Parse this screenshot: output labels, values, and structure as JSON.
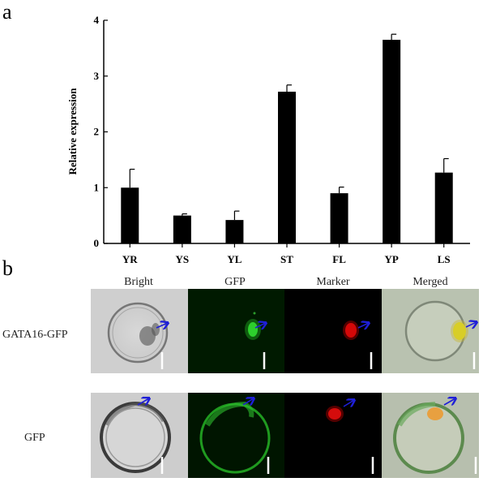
{
  "panel_a_label": "a",
  "panel_b_label": "b",
  "chart_data": {
    "type": "bar",
    "categories": [
      "YR",
      "YS",
      "YL",
      "ST",
      "FL",
      "YP",
      "LS"
    ],
    "values": [
      1.0,
      0.5,
      0.42,
      2.72,
      0.9,
      3.65,
      1.27
    ],
    "errors": [
      0.33,
      0.03,
      0.16,
      0.12,
      0.11,
      0.1,
      0.25
    ],
    "ylabel": "Relative expression",
    "xlabel": "",
    "ylim": [
      0,
      4
    ],
    "yticks": [
      0,
      1,
      2,
      3,
      4
    ],
    "bar_color": "#000000"
  },
  "micrographs": {
    "columns": [
      "Bright",
      "GFP",
      "Marker",
      "Merged"
    ],
    "rows": [
      "GATA16-GFP",
      "GFP"
    ],
    "arrow_color": "#1f1fd8",
    "scale_bar_color": "#ffffff"
  }
}
